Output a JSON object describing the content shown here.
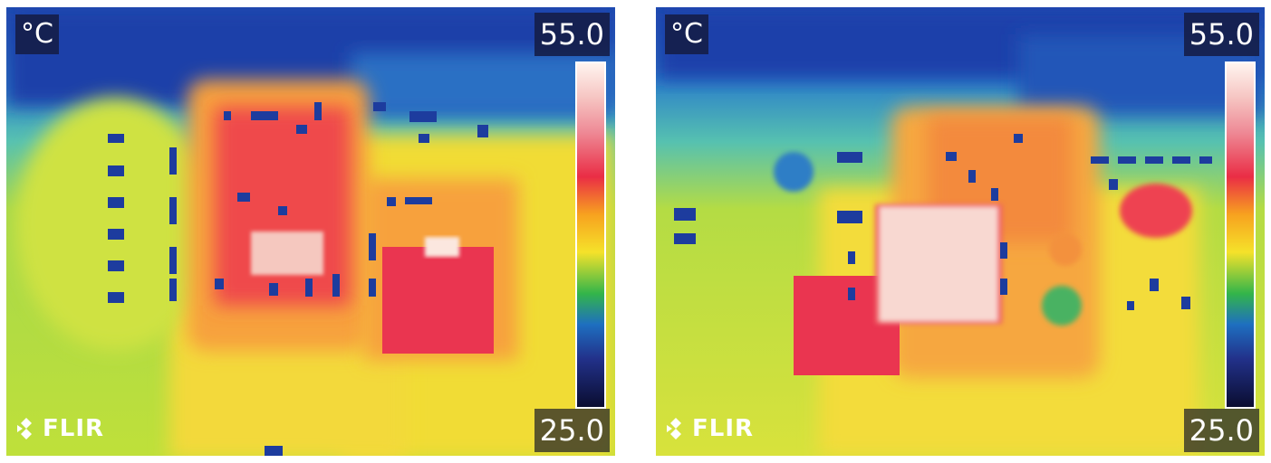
{
  "images": [
    {
      "unit": "°C",
      "scale_max": "55.0",
      "scale_min": "25.0",
      "logo": "FLIR",
      "logo_icon": "flir-logo-icon"
    },
    {
      "unit": "°C",
      "scale_max": "55.0",
      "scale_min": "25.0",
      "logo": "FLIR",
      "logo_icon": "flir-logo-icon"
    }
  ],
  "palette": {
    "cold": "#1a3fa8",
    "cool": "#2fa7d6",
    "green": "#6cc65a",
    "yellow": "#f3e23a",
    "orange": "#f7a63a",
    "red": "#ee3a4f",
    "hot": "#f8e0da"
  }
}
